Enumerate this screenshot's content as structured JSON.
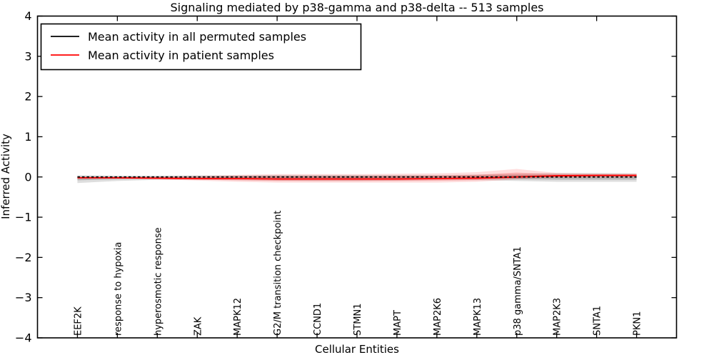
{
  "chart_data": {
    "type": "line",
    "title": "Signaling mediated by p38-gamma and p38-delta -- 513 samples",
    "xlabel": "Cellular Entities",
    "ylabel": "Inferred Activity",
    "ylim": [
      -4,
      4
    ],
    "yticks": [
      4,
      3,
      2,
      1,
      0,
      -1,
      -2,
      -3,
      -4
    ],
    "grid": false,
    "legend_position": "upper left",
    "categories": [
      "EEF2K",
      "response to hypoxia",
      "hyperosmotic response",
      "ZAK",
      "MAPK12",
      "G2/M transition checkpoint",
      "CCND1",
      "STMN1",
      "MAPT",
      "MAP2K6",
      "MAPK13",
      "p38 gamma/SNTA1",
      "MAP2K3",
      "SNTA1",
      "PKN1"
    ],
    "series": [
      {
        "name": "Mean activity in all permuted samples",
        "color": "#000000",
        "style": "dashed",
        "band_color": "#000000",
        "values": [
          0,
          0,
          0,
          0,
          0,
          0,
          0,
          0,
          0,
          0,
          0,
          0,
          0,
          0,
          0
        ],
        "band_upper": [
          0.04,
          0.03,
          0.03,
          0.04,
          0.04,
          0.05,
          0.05,
          0.05,
          0.05,
          0.05,
          0.06,
          0.08,
          0.1,
          0.1,
          0.09
        ],
        "band_lower": [
          -0.15,
          -0.1,
          -0.07,
          -0.07,
          -0.08,
          -0.09,
          -0.1,
          -0.1,
          -0.09,
          -0.08,
          -0.08,
          -0.1,
          -0.12,
          -0.12,
          -0.12
        ]
      },
      {
        "name": "Mean activity in patient samples",
        "color": "#ff0000",
        "style": "solid",
        "band_color": "#ff0000",
        "values": [
          -0.02,
          -0.02,
          -0.03,
          -0.04,
          -0.04,
          -0.05,
          -0.05,
          -0.05,
          -0.05,
          -0.04,
          -0.03,
          0.0,
          0.03,
          0.04,
          0.04
        ],
        "band_upper": [
          0.0,
          0.0,
          0.0,
          0.02,
          0.05,
          0.07,
          0.07,
          0.07,
          0.08,
          0.09,
          0.12,
          0.2,
          0.1,
          0.08,
          0.08
        ],
        "band_lower": [
          -0.05,
          -0.05,
          -0.06,
          -0.09,
          -0.12,
          -0.14,
          -0.14,
          -0.14,
          -0.14,
          -0.14,
          -0.12,
          -0.06,
          -0.02,
          -0.01,
          -0.01
        ]
      }
    ]
  }
}
